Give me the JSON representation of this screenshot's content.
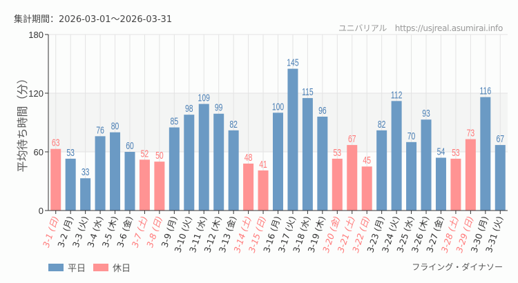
{
  "header": {
    "period": "集計期間：2026-03-01～2026-03-31",
    "source": "ユニバリアル　https://usjreal.asumirai.info"
  },
  "attraction": "フライング・ダイナソー",
  "legend": [
    {
      "label": "平日",
      "color": "#6b9ac4"
    },
    {
      "label": "休日",
      "color": "#ff9393"
    }
  ],
  "colors": {
    "weekday": "#6b9ac4",
    "holiday": "#ff9393",
    "weekday_label": "#4a7fb5",
    "holiday_label": "#ff7878",
    "band": "#f4f5f4",
    "grid": "#e3e3e3"
  },
  "chart_data": {
    "type": "bar",
    "ylabel": "平均待ち時間（分）",
    "ylim": [
      0,
      180
    ],
    "yticks": [
      0,
      60,
      120,
      180
    ],
    "shaded_band": [
      60,
      120
    ],
    "grid": true,
    "legend_position": "bottom-left",
    "categories": [
      "3-1",
      "3-2",
      "3-3",
      "3-4",
      "3-5",
      "3-6",
      "3-7",
      "3-8",
      "3-9",
      "3-10",
      "3-11",
      "3-12",
      "3-13",
      "3-14",
      "3-15",
      "3-16",
      "3-17",
      "3-18",
      "3-19",
      "3-20",
      "3-21",
      "3-22",
      "3-23",
      "3-24",
      "3-25",
      "3-26",
      "3-27",
      "3-28",
      "3-29",
      "3-30",
      "3-31"
    ],
    "weekdays": [
      "日",
      "月",
      "火",
      "水",
      "木",
      "金",
      "土",
      "日",
      "月",
      "火",
      "水",
      "木",
      "金",
      "土",
      "日",
      "月",
      "火",
      "水",
      "木",
      "金",
      "土",
      "日",
      "月",
      "火",
      "水",
      "木",
      "金",
      "土",
      "日",
      "月",
      "火"
    ],
    "holiday": [
      true,
      false,
      false,
      false,
      false,
      false,
      true,
      true,
      false,
      false,
      false,
      false,
      false,
      true,
      true,
      false,
      false,
      false,
      false,
      true,
      true,
      true,
      false,
      false,
      false,
      false,
      false,
      true,
      true,
      false,
      false
    ],
    "values": [
      63,
      53,
      33,
      76,
      80,
      60,
      52,
      50,
      85,
      98,
      109,
      99,
      82,
      48,
      41,
      100,
      145,
      115,
      96,
      53,
      67,
      45,
      82,
      112,
      70,
      93,
      54,
      53,
      73,
      116,
      67
    ]
  }
}
